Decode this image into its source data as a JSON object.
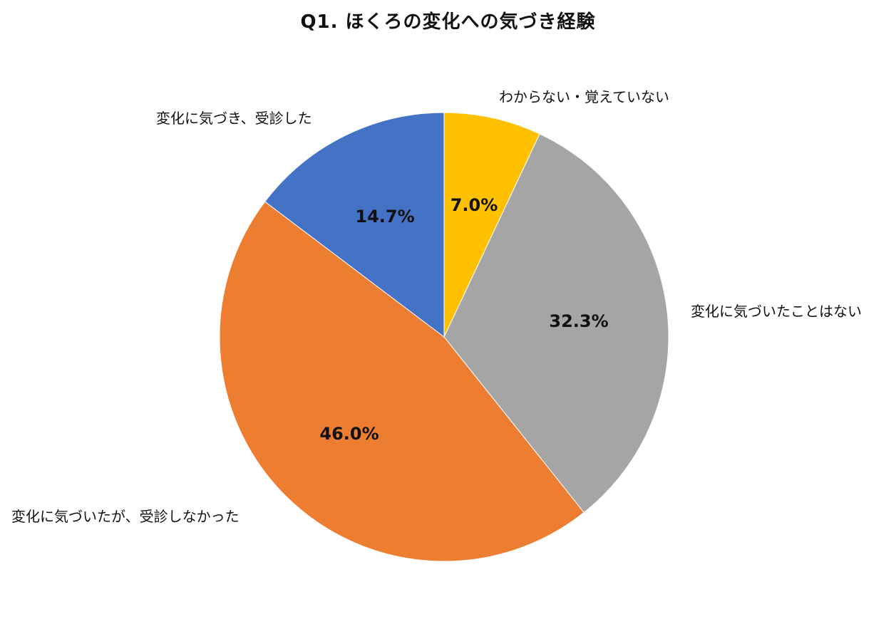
{
  "chart_data": {
    "type": "pie",
    "title": "Q1. ほくろの変化への気づき経験",
    "start_angle_deg": 0,
    "direction": "clockwise",
    "center": [
      623,
      473
    ],
    "radius": 315,
    "slices": [
      {
        "label": "わからない・覚えていない",
        "value": 7.0,
        "value_label": "7.0%",
        "color": "#FFC000"
      },
      {
        "label": "変化に気づいたことはない",
        "value": 32.3,
        "value_label": "32.3%",
        "color": "#A5A5A5"
      },
      {
        "label": "変化に気づいたが、受診しなかった",
        "value": 46.0,
        "value_label": "46.0%",
        "color": "#ED7D31"
      },
      {
        "label": "変化に気づき、受診した",
        "value": 14.7,
        "value_label": "14.7%",
        "color": "#4472C4"
      }
    ],
    "legend": "none",
    "data_labels": "inside, bold, percent",
    "category_labels": "outside"
  }
}
